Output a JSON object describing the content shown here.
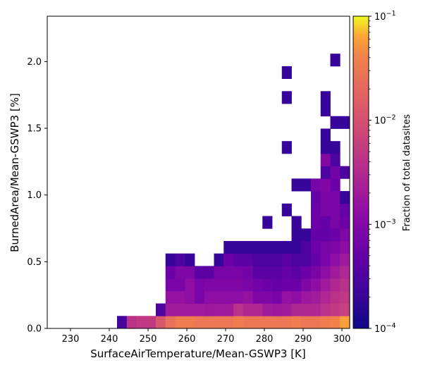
{
  "chart_data": {
    "type": "heatmap",
    "xlabel": "SurfaceAirTemperature/Mean-GSWP3 [K]",
    "ylabel": "BurnedArea/Mean-GSWP3 [%]",
    "xlim": [
      224,
      302
    ],
    "ylim": [
      0,
      2.34
    ],
    "x_ticks": [
      230,
      240,
      250,
      260,
      270,
      280,
      290,
      300
    ],
    "y_ticks": [
      "0.0",
      "0.5",
      "1.0",
      "1.5",
      "2.0"
    ],
    "grid": false,
    "x_bin_edges": [
      242,
      244.5,
      247,
      249.5,
      252,
      254.5,
      257,
      259.5,
      262,
      264.5,
      267,
      269.5,
      272,
      274.5,
      277,
      279.5,
      282,
      284.5,
      287,
      289.5,
      292,
      294.5,
      297,
      299.5,
      302
    ],
    "y_bin_width": 0.0936,
    "colorbar": {
      "label": "Fraction of total datasites",
      "scale": "log",
      "range": [
        0.0001,
        0.1
      ],
      "colormap": "plasma",
      "tick_labels": [
        {
          "base": "10",
          "exp": "−1",
          "value": 0.1
        },
        {
          "base": "10",
          "exp": "−2",
          "value": 0.01
        },
        {
          "base": "10",
          "exp": "−3",
          "value": 0.001
        },
        {
          "base": "10",
          "exp": "−4",
          "value": 0.0001
        }
      ]
    },
    "rows": [
      {
        "y_bin": 0,
        "x_bins": [
          0,
          1,
          2,
          3,
          4,
          5,
          6,
          7,
          8,
          9,
          10,
          11,
          12,
          13,
          14,
          15,
          16,
          17,
          18,
          19,
          20,
          21,
          22,
          23
        ],
        "values": [
          0.00025,
          0.004,
          0.005,
          0.005,
          0.012,
          0.025,
          0.035,
          0.035,
          0.03,
          0.03,
          0.03,
          0.03,
          0.035,
          0.03,
          0.03,
          0.03,
          0.03,
          0.03,
          0.035,
          0.03,
          0.03,
          0.035,
          0.04,
          0.06
        ]
      },
      {
        "y_bin": 1,
        "x_bins": [
          4,
          5,
          6,
          7,
          8,
          9,
          10,
          11,
          12,
          13,
          14,
          15,
          16,
          17,
          18,
          19,
          20,
          21,
          22,
          23
        ],
        "values": [
          0.0003,
          0.002,
          0.002,
          0.002,
          0.002,
          0.0018,
          0.002,
          0.002,
          0.004,
          0.003,
          0.003,
          0.002,
          0.0018,
          0.002,
          0.003,
          0.003,
          0.003,
          0.004,
          0.005,
          0.006
        ]
      },
      {
        "y_bin": 2,
        "x_bins": [
          5,
          6,
          7,
          8,
          9,
          10,
          11,
          12,
          13,
          14,
          15,
          16,
          17,
          18,
          19,
          20,
          21,
          22,
          23
        ],
        "values": [
          0.0015,
          0.0015,
          0.0013,
          0.0008,
          0.0013,
          0.0013,
          0.0013,
          0.0013,
          0.0015,
          0.0009,
          0.0009,
          0.0008,
          0.0015,
          0.0013,
          0.0018,
          0.002,
          0.003,
          0.004,
          0.005
        ]
      },
      {
        "y_bin": 3,
        "x_bins": [
          5,
          6,
          7,
          8,
          9,
          10,
          11,
          12,
          13,
          14,
          15,
          16,
          17,
          18,
          19,
          20,
          21,
          22,
          23
        ],
        "values": [
          0.0008,
          0.0008,
          0.0013,
          0.0008,
          0.0009,
          0.0009,
          0.0009,
          0.0009,
          0.0008,
          0.0007,
          0.0006,
          0.0005,
          0.0006,
          0.0006,
          0.0009,
          0.0013,
          0.002,
          0.003,
          0.004
        ]
      },
      {
        "y_bin": 4,
        "x_bins": [
          5,
          6,
          7,
          8,
          9,
          10,
          11,
          12,
          13,
          14,
          15,
          16,
          17,
          18,
          19,
          20,
          21,
          22,
          23
        ],
        "values": [
          0.0006,
          0.0009,
          0.0009,
          0.0004,
          0.0004,
          0.0008,
          0.0008,
          0.0008,
          0.0007,
          0.0004,
          0.0004,
          0.0004,
          0.0005,
          0.0004,
          0.0006,
          0.0008,
          0.0013,
          0.002,
          0.003
        ]
      },
      {
        "y_bin": 5,
        "x_bins": [
          5,
          6,
          7,
          10,
          11,
          12,
          13,
          14,
          15,
          16,
          17,
          18,
          19,
          20,
          21,
          22,
          23
        ],
        "values": [
          0.0002,
          0.0003,
          0.0002,
          0.0002,
          0.0006,
          0.0004,
          0.0004,
          0.0003,
          0.0003,
          0.0003,
          0.0004,
          0.0003,
          0.0003,
          0.0005,
          0.0008,
          0.0013,
          0.002
        ]
      },
      {
        "y_bin": 6,
        "x_bins": [
          11,
          12,
          13,
          14,
          15,
          16,
          17,
          18,
          19,
          20,
          21,
          22,
          23
        ],
        "values": [
          0.0002,
          0.0002,
          0.0002,
          0.0002,
          0.0002,
          0.0002,
          0.0002,
          0.0002,
          0.0003,
          0.0006,
          0.0008,
          0.0009,
          0.0013
        ]
      },
      {
        "y_bin": 7,
        "x_bins": [
          18,
          19,
          20,
          21,
          22,
          23
        ],
        "values": [
          0.0002,
          0.0002,
          0.0005,
          0.0005,
          0.0006,
          0.0009
        ]
      },
      {
        "y_bin": 8,
        "x_bins": [
          15,
          18,
          20,
          21,
          22,
          23
        ],
        "values": [
          0.0002,
          0.0002,
          0.0006,
          0.0005,
          0.0008,
          0.0006
        ]
      },
      {
        "y_bin": 9,
        "x_bins": [
          17,
          20,
          21,
          22,
          23
        ],
        "values": [
          0.0002,
          0.0006,
          0.0008,
          0.0008,
          0.0005
        ]
      },
      {
        "y_bin": 10,
        "x_bins": [
          20,
          21,
          22,
          23
        ],
        "values": [
          0.0005,
          0.0008,
          0.0008,
          0.0002
        ]
      },
      {
        "y_bin": 11,
        "x_bins": [
          18,
          19,
          20,
          21,
          22
        ],
        "values": [
          0.0002,
          0.0002,
          0.0008,
          0.0009,
          0.0006
        ]
      },
      {
        "y_bin": 12,
        "x_bins": [
          21,
          22,
          23
        ],
        "values": [
          0.0003,
          0.0007,
          0.0003
        ]
      },
      {
        "y_bin": 13,
        "x_bins": [
          21,
          22
        ],
        "values": [
          0.001,
          0.0003
        ]
      },
      {
        "y_bin": 14,
        "x_bins": [
          17,
          21,
          22
        ],
        "values": [
          0.0002,
          0.0002,
          0.0002
        ]
      },
      {
        "y_bin": 15,
        "x_bins": [
          21
        ],
        "values": [
          0.0002
        ]
      },
      {
        "y_bin": 16,
        "x_bins": [
          22,
          23
        ],
        "values": [
          0.0002,
          0.0002
        ]
      },
      {
        "y_bin": 17,
        "x_bins": [
          21
        ],
        "values": [
          0.0002
        ]
      },
      {
        "y_bin": 18,
        "x_bins": [
          17,
          21
        ],
        "values": [
          0.0002,
          0.0002
        ]
      },
      {
        "y_bin": 20,
        "x_bins": [
          17
        ],
        "values": [
          0.0002
        ]
      },
      {
        "y_bin": 21,
        "x_bins": [
          22
        ],
        "values": [
          0.0002
        ]
      }
    ]
  }
}
